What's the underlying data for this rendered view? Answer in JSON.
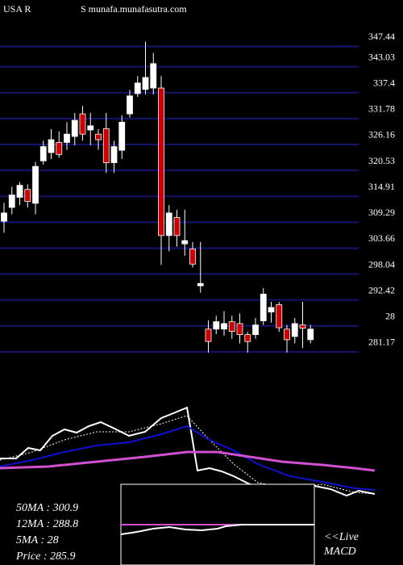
{
  "chart_data": {
    "type": "candlestick",
    "title": "USA R",
    "subtitle": "S munafa.munafasutra.com",
    "ylim": [
      279.4,
      349.8
    ],
    "yticks": [
      347.44,
      343.03,
      337.4,
      331.78,
      326.16,
      320.53,
      314.91,
      309.29,
      303.66,
      298.04,
      292.42,
      {
        "value": 286.8,
        "label": "28"
      },
      281.17
    ],
    "grid": true,
    "up_color": "#ffffff",
    "down_color": "#cc0000",
    "grid_color": "#14146e",
    "open": [
      309.5,
      312.5,
      314.7,
      316.4,
      313.4,
      322.6,
      324.4,
      326.6,
      326.6,
      327.9,
      332.8,
      329.3,
      328.4,
      329.6,
      322.2,
      324.9,
      332.8,
      337.2,
      338.1,
      338.4,
      338.4,
      306.4,
      310.3,
      304.6,
      303.5,
      295.5,
      286.1,
      286.1,
      286.1,
      287.7,
      287.3,
      284.9,
      284.9,
      287.9,
      289.8,
      291.4,
      286.1,
      284.5,
      287,
      283.8
    ],
    "high": [
      313.5,
      317,
      318,
      317.5,
      322.4,
      327,
      329.5,
      329,
      331,
      333,
      334.5,
      333,
      329.5,
      333,
      327,
      332.5,
      338,
      341,
      348.5,
      346,
      341,
      313,
      312,
      312,
      305,
      305,
      288,
      289,
      290,
      289,
      289.5,
      285.5,
      288.5,
      295,
      292,
      292,
      287,
      288.5,
      292,
      287
    ],
    "low": [
      307,
      311,
      313,
      312.5,
      311,
      321.8,
      323,
      323.3,
      325,
      326,
      327,
      326,
      325,
      320,
      320,
      323,
      332,
      336.5,
      337,
      337,
      300,
      303,
      304,
      302,
      299.5,
      294,
      281,
      285,
      284.7,
      284,
      283,
      281,
      284,
      287,
      287.5,
      285.5,
      281,
      283,
      282,
      283
    ],
    "close": [
      311.3,
      315.2,
      317.3,
      313.8,
      321.4,
      325.7,
      327.2,
      324,
      328.4,
      331.4,
      328.4,
      330.2,
      327.2,
      322.2,
      325.7,
      331,
      336.7,
      339.5,
      340.7,
      343.7,
      306.4,
      311.3,
      306.4,
      305.3,
      300.2,
      296,
      283.4,
      287.7,
      287.3,
      285.6,
      284.9,
      283.4,
      287,
      293.7,
      290.8,
      286.4,
      283.8,
      287.3,
      286.3,
      286.1
    ],
    "annotations": [
      "50MA : 300.9",
      "12MA : 288.8",
      "5MA : 28",
      "Price  : 285.9"
    ],
    "macd_label": [
      "<<Live",
      "MACD"
    ]
  }
}
